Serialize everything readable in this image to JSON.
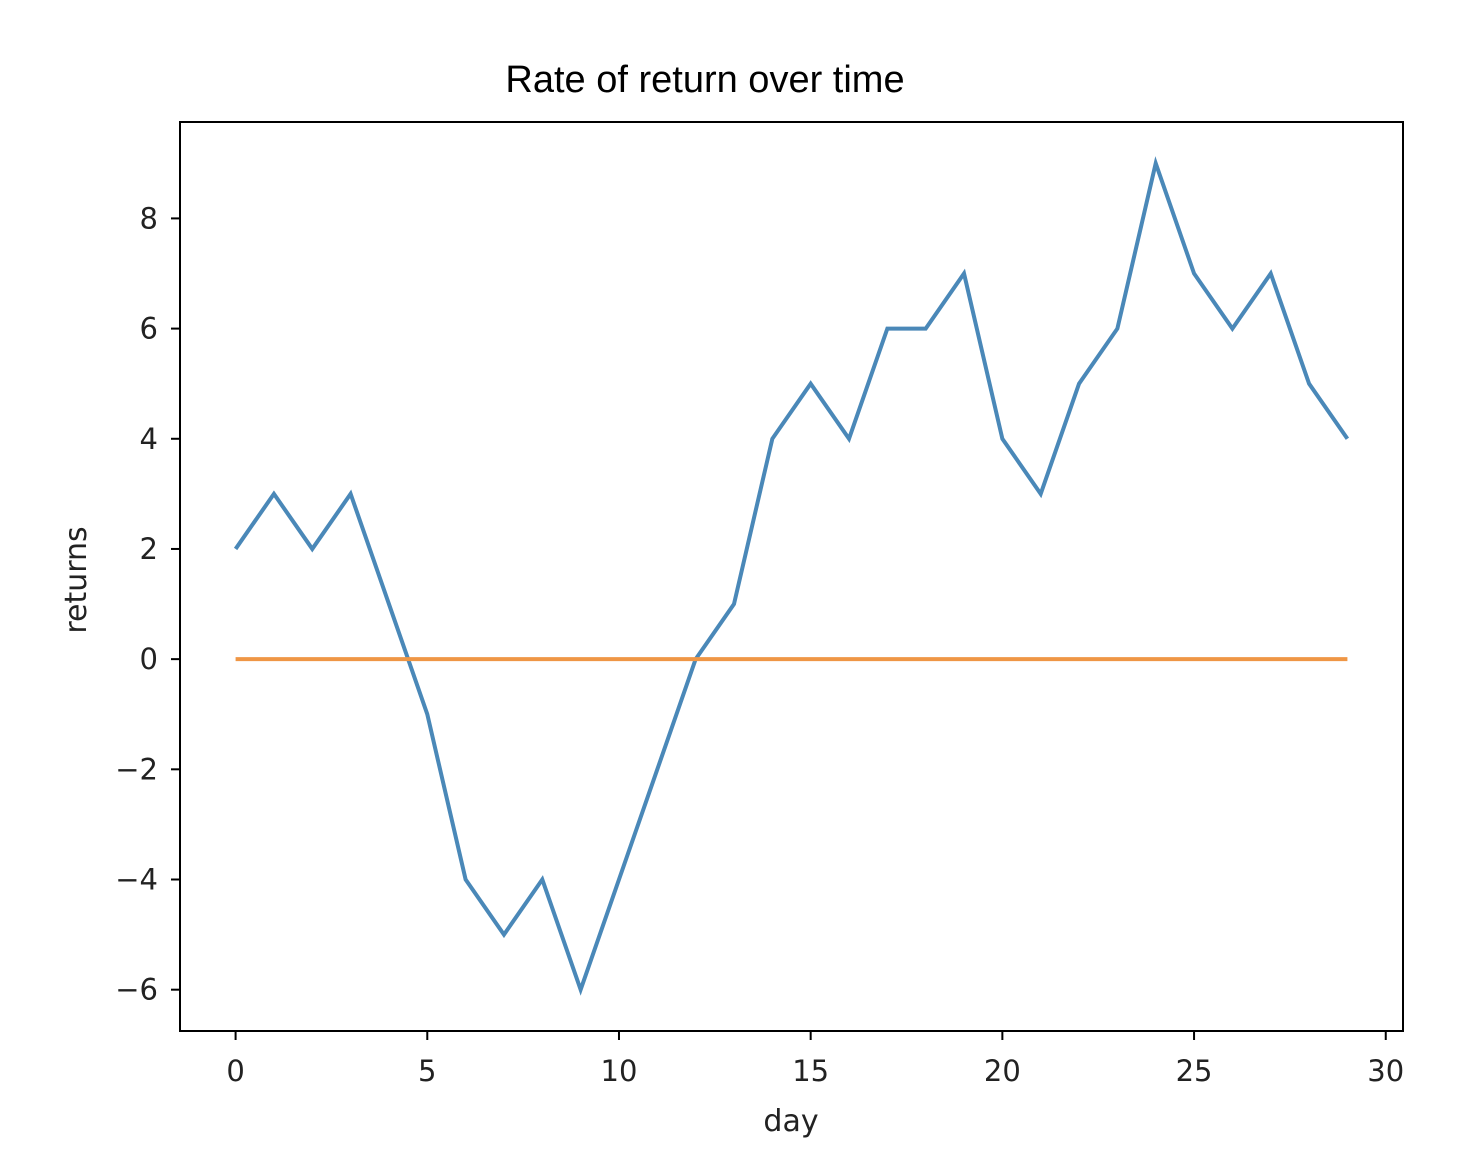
{
  "chart_data": {
    "type": "line",
    "title": "Rate of return over time",
    "xlabel": "day",
    "ylabel": "returns",
    "xlim": [
      -1.45,
      30.45
    ],
    "ylim": [
      -6.75,
      9.75
    ],
    "xticks": [
      0,
      5,
      10,
      15,
      20,
      25,
      30
    ],
    "xtick_labels": [
      "0",
      "5",
      "10",
      "15",
      "20",
      "25",
      "30"
    ],
    "yticks": [
      -6,
      -4,
      -2,
      0,
      2,
      4,
      6,
      8
    ],
    "ytick_labels": [
      "−6",
      "−4",
      "−2",
      "0",
      "2",
      "4",
      "6",
      "8"
    ],
    "grid": false,
    "legend": "none",
    "x": [
      0,
      1,
      2,
      3,
      4,
      5,
      6,
      7,
      8,
      9,
      10,
      11,
      12,
      13,
      14,
      15,
      16,
      17,
      18,
      19,
      20,
      21,
      22,
      23,
      24,
      25,
      26,
      27,
      28,
      29
    ],
    "series": [
      {
        "color": "#4a88b8",
        "values": [
          2,
          3,
          2,
          3,
          1,
          -1,
          -4,
          -5,
          -4,
          -6,
          -4,
          -2,
          0,
          1,
          4,
          5,
          4,
          6,
          6,
          7,
          4,
          3,
          5,
          6,
          9,
          7,
          6,
          7,
          5,
          4
        ]
      },
      {
        "color": "#ef9645",
        "values": [
          0,
          0,
          0,
          0,
          0,
          0,
          0,
          0,
          0,
          0,
          0,
          0,
          0,
          0,
          0,
          0,
          0,
          0,
          0,
          0,
          0,
          0,
          0,
          0,
          0,
          0,
          0,
          0,
          0,
          0
        ]
      }
    ]
  }
}
